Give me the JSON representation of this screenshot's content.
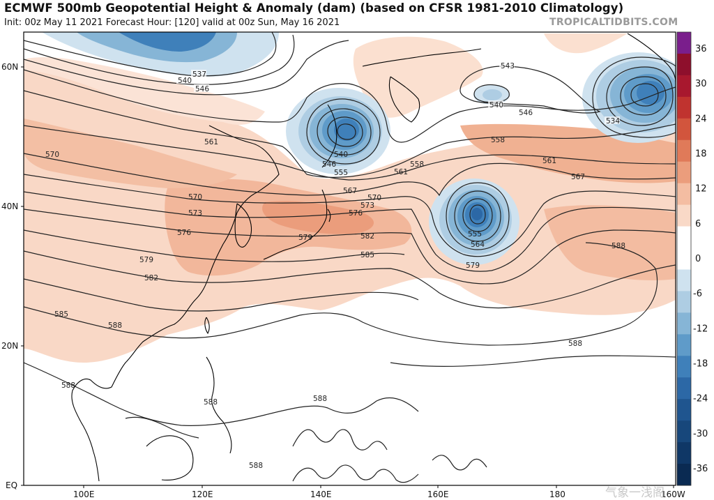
{
  "header": {
    "title": "ECMWF 500mb Geopotential Height & Anomaly (dam) (based on CFSR 1981-2010 Climatology)",
    "subtitle": "Init: 00z May 11 2021   Forecast Hour: [120]   valid at 00z Sun, May 16 2021",
    "credit": "TROPICALTIDBITS.COM"
  },
  "axes": {
    "lat_labels": [
      "60N",
      "40N",
      "20N",
      "EQ"
    ],
    "lon_labels": [
      "100E",
      "120E",
      "140E",
      "160E",
      "180",
      "160W"
    ]
  },
  "colorbar": {
    "ticks": [
      "36",
      "30",
      "24",
      "18",
      "12",
      "6",
      "0",
      "-6",
      "-12",
      "-18",
      "-24",
      "-30",
      "-36"
    ],
    "colors_top_to_bottom": [
      "#7a1e8c",
      "#8e0f2c",
      "#a8182e",
      "#c0332f",
      "#d2553d",
      "#e07a59",
      "#eb9d7c",
      "#f4bda2",
      "#f9d9c7",
      "#ffffff",
      "#ffffff",
      "#cfe2ef",
      "#aecde3",
      "#86b5d6",
      "#5f9bc9",
      "#3f80ba",
      "#2c68a6",
      "#1f558f",
      "#17477b",
      "#0f3766",
      "#0a2a52"
    ]
  },
  "contour_labels": [
    "537",
    "540",
    "546",
    "543",
    "540",
    "546",
    "534",
    "561",
    "570",
    "540",
    "546",
    "555",
    "558",
    "561",
    "558",
    "561",
    "567",
    "567",
    "570",
    "573",
    "576",
    "570",
    "573",
    "576",
    "579",
    "582",
    "555",
    "564",
    "579",
    "585",
    "579",
    "582",
    "585",
    "588",
    "588",
    "588",
    "588",
    "588",
    "588",
    "588"
  ],
  "watermark": "气象一浅阁"
}
